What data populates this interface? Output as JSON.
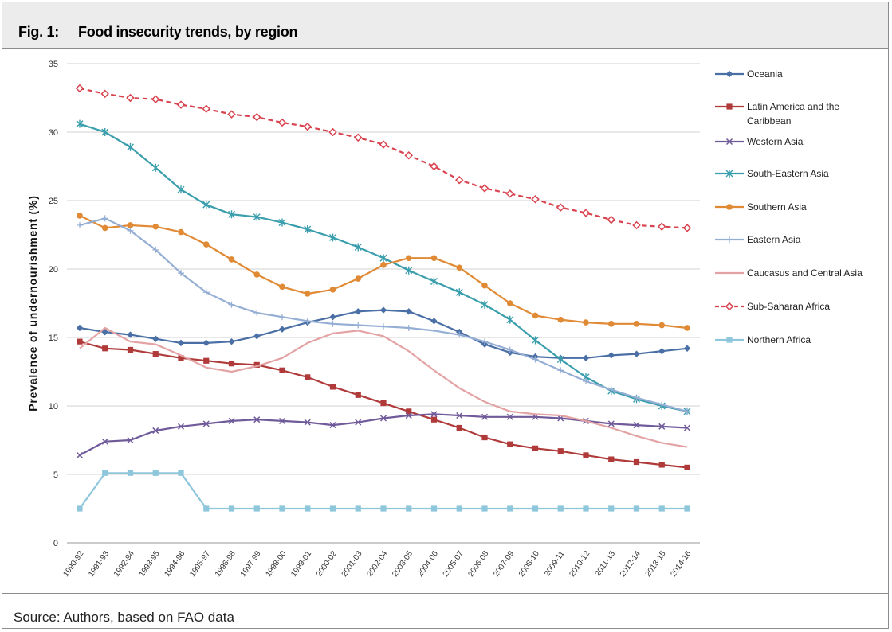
{
  "header": {
    "figure_number": "Fig. 1:",
    "title": "Food insecurity trends, by region"
  },
  "footer": {
    "source": "Source: Authors, based on FAO data"
  },
  "chart_data": {
    "type": "line",
    "title": "",
    "xlabel": "",
    "ylabel": "Prevalence of undernourishment (%)",
    "ylim": [
      0,
      35
    ],
    "yticks": [
      0,
      5,
      10,
      15,
      20,
      25,
      30,
      35
    ],
    "grid": true,
    "legend_position": "right",
    "categories": [
      "1990-92",
      "1991-93",
      "1992-94",
      "1993-95",
      "1994-96",
      "1995-97",
      "1996-98",
      "1997-99",
      "1998-00",
      "1999-01",
      "2000-02",
      "2001-03",
      "2002-04",
      "2003-05",
      "2004-06",
      "2005-07",
      "2006-08",
      "2007-09",
      "2008-10",
      "2009-11",
      "2010-12",
      "2011-13",
      "2012-14",
      "2013-15",
      "2014-16"
    ],
    "series": [
      {
        "name": "Oceania",
        "color": "#4a6fa5",
        "marker": "diamond",
        "dashed": false,
        "values": [
          15.7,
          15.4,
          15.2,
          14.9,
          14.6,
          14.6,
          14.7,
          15.1,
          15.6,
          16.1,
          16.5,
          16.9,
          17.0,
          16.9,
          16.2,
          15.4,
          14.5,
          13.9,
          13.6,
          13.5,
          13.5,
          13.7,
          13.8,
          14.0,
          14.2
        ]
      },
      {
        "name": "Latin America and the Caribbean",
        "color": "#b03a3a",
        "marker": "square",
        "dashed": false,
        "values": [
          14.7,
          14.2,
          14.1,
          13.8,
          13.5,
          13.3,
          13.1,
          13.0,
          12.6,
          12.1,
          11.4,
          10.8,
          10.2,
          9.6,
          9.0,
          8.4,
          7.7,
          7.2,
          6.9,
          6.7,
          6.4,
          6.1,
          5.9,
          5.7,
          5.5
        ]
      },
      {
        "name": "Western Asia",
        "color": "#6f5a9a",
        "marker": "x",
        "dashed": false,
        "values": [
          6.4,
          7.4,
          7.5,
          8.2,
          8.5,
          8.7,
          8.9,
          9.0,
          8.9,
          8.8,
          8.6,
          8.8,
          9.1,
          9.3,
          9.4,
          9.3,
          9.2,
          9.2,
          9.2,
          9.1,
          8.9,
          8.7,
          8.6,
          8.5,
          8.4
        ]
      },
      {
        "name": "South-Eastern Asia",
        "color": "#3a9eac",
        "marker": "star",
        "dashed": false,
        "values": [
          30.6,
          30.0,
          28.9,
          27.4,
          25.8,
          24.7,
          24.0,
          23.8,
          23.4,
          22.9,
          22.3,
          21.6,
          20.8,
          19.9,
          19.1,
          18.3,
          17.4,
          16.3,
          14.8,
          13.4,
          12.1,
          11.1,
          10.5,
          10.0,
          9.6
        ]
      },
      {
        "name": "Southern Asia",
        "color": "#e08a35",
        "marker": "circle",
        "dashed": false,
        "values": [
          23.9,
          23.0,
          23.2,
          23.1,
          22.7,
          21.8,
          20.7,
          19.6,
          18.7,
          18.2,
          18.5,
          19.3,
          20.3,
          20.8,
          20.8,
          20.1,
          18.8,
          17.5,
          16.6,
          16.3,
          16.1,
          16.0,
          16.0,
          15.9,
          15.7
        ]
      },
      {
        "name": "Eastern Asia",
        "color": "#95aed3",
        "marker": "plus",
        "dashed": false,
        "values": [
          23.2,
          23.7,
          22.8,
          21.4,
          19.7,
          18.3,
          17.4,
          16.8,
          16.5,
          16.2,
          16.0,
          15.9,
          15.8,
          15.7,
          15.5,
          15.2,
          14.7,
          14.1,
          13.4,
          12.6,
          11.8,
          11.2,
          10.6,
          10.1,
          9.6
        ]
      },
      {
        "name": "Caucasus and Central Asia",
        "color": "#e3a3a4",
        "marker": "none",
        "dashed": false,
        "values": [
          14.2,
          15.7,
          14.7,
          14.5,
          13.7,
          12.8,
          12.5,
          12.9,
          13.5,
          14.6,
          15.3,
          15.5,
          15.1,
          14.0,
          12.6,
          11.3,
          10.3,
          9.6,
          9.4,
          9.3,
          8.9,
          8.4,
          7.8,
          7.3,
          7.0
        ]
      },
      {
        "name": "Sub-Saharan Africa",
        "color": "#d8434f",
        "marker": "diamond-open",
        "dashed": true,
        "values": [
          33.2,
          32.8,
          32.5,
          32.4,
          32.0,
          31.7,
          31.3,
          31.1,
          30.7,
          30.4,
          30.0,
          29.6,
          29.1,
          28.3,
          27.5,
          26.5,
          25.9,
          25.5,
          25.1,
          24.5,
          24.1,
          23.6,
          23.2,
          23.1,
          23.0
        ]
      },
      {
        "name": "Northern Africa",
        "color": "#8ec6db",
        "marker": "square",
        "dashed": false,
        "values": [
          2.5,
          5.1,
          5.1,
          5.1,
          5.1,
          2.5,
          2.5,
          2.5,
          2.5,
          2.5,
          2.5,
          2.5,
          2.5,
          2.5,
          2.5,
          2.5,
          2.5,
          2.5,
          2.5,
          2.5,
          2.5,
          2.5,
          2.5,
          2.5,
          2.5
        ]
      }
    ]
  }
}
